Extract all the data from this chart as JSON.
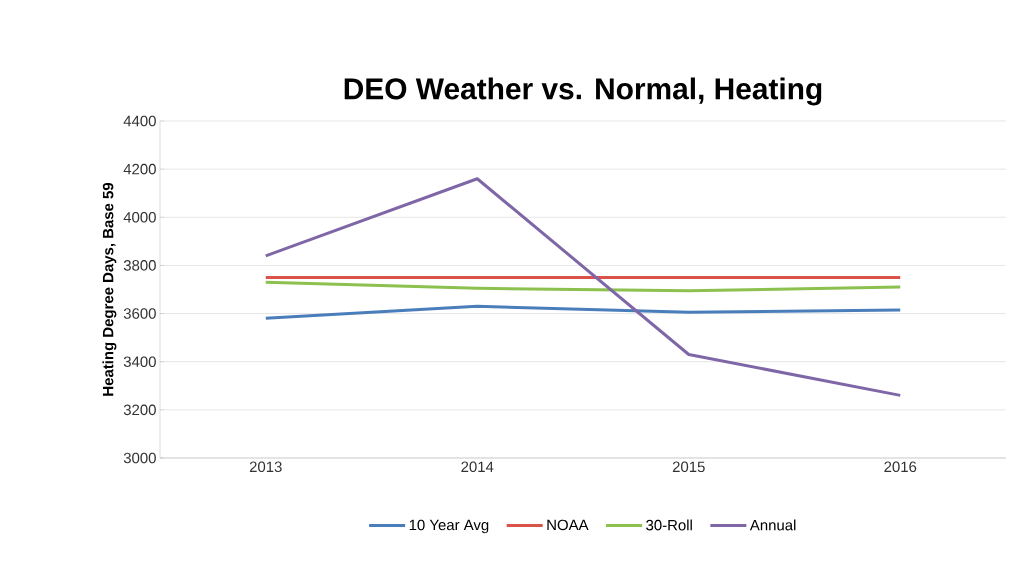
{
  "chart_data": {
    "type": "line",
    "title": "DEO Weather vs. Normal, Heating",
    "ylabel": "Heating Degree Days, Base 59",
    "categories": [
      "2013",
      "2014",
      "2015",
      "2016"
    ],
    "series": [
      {
        "name": "10 Year Avg",
        "color": "#4a7ebb",
        "values": [
          3580,
          3630,
          3605,
          3615
        ]
      },
      {
        "name": "NOAA",
        "color": "#d9534a",
        "values": [
          3750,
          3750,
          3750,
          3750
        ]
      },
      {
        "name": "30-Roll",
        "color": "#8cc04f",
        "values": [
          3730,
          3705,
          3695,
          3710
        ]
      },
      {
        "name": "Annual",
        "color": "#7f66a6",
        "values": [
          3840,
          4160,
          3430,
          3260
        ]
      }
    ],
    "ylim": [
      3000,
      4400
    ],
    "yticks": [
      3000,
      3200,
      3400,
      3600,
      3800,
      4000,
      4200,
      4400
    ],
    "grid": "y",
    "legend": "bottom",
    "marker": "none",
    "line_style": "solid"
  }
}
